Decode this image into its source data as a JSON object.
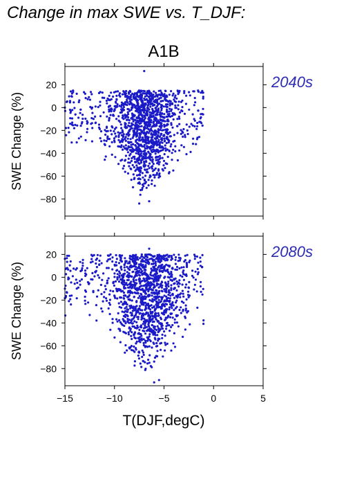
{
  "page_title": "Change in max SWE vs. T_DJF:",
  "scenario": "A1B",
  "colors": {
    "points": "#1a1ac8",
    "period_label": "#2b2bb5",
    "axes": "#000000"
  },
  "chart_data": [
    {
      "type": "scatter",
      "panel_label": "2040s",
      "title": "A1B",
      "xlabel": "",
      "ylabel": "SWE Change (%)",
      "xlim": [
        -15,
        5
      ],
      "ylim": [
        -95,
        36
      ],
      "xticks": [
        -15,
        -10,
        -5,
        0,
        5
      ],
      "yticks": [
        20,
        0,
        -20,
        -40,
        -60,
        -80
      ],
      "ytick_labels": [
        "20",
        "0",
        "−20",
        "−40",
        "−60",
        "−80"
      ],
      "point_count_approx": 1400,
      "cloud": {
        "x_range": [
          -15,
          -1
        ],
        "core_x": [
          -9.5,
          -4.5
        ],
        "y_top": 15,
        "y_bottom_core": -80,
        "outliers": [
          [
            -7,
            32
          ],
          [
            -7.5,
            -84
          ],
          [
            -6.5,
            -82
          ],
          [
            -15,
            0
          ]
        ]
      },
      "grid": false,
      "legend": "none"
    },
    {
      "type": "scatter",
      "panel_label": "2080s",
      "title": "",
      "xlabel": "T(DJF,degC)",
      "ylabel": "SWE Change (%)",
      "xlim": [
        -15,
        5
      ],
      "ylim": [
        -95,
        36
      ],
      "xticks": [
        -15,
        -10,
        -5,
        0,
        5
      ],
      "xtick_labels": [
        "−15",
        "−10",
        "−5",
        "0",
        "5"
      ],
      "yticks": [
        20,
        0,
        -20,
        -40,
        -60,
        -80
      ],
      "ytick_labels": [
        "20",
        "0",
        "−20",
        "−40",
        "−60",
        "−80"
      ],
      "point_count_approx": 1400,
      "cloud": {
        "x_range": [
          -15,
          -1
        ],
        "core_x": [
          -9.5,
          -4
        ],
        "y_top": 20,
        "y_bottom_core": -88,
        "outliers": [
          [
            -6.5,
            25
          ],
          [
            -6,
            -92
          ],
          [
            -5.5,
            -90
          ],
          [
            -15,
            -10
          ]
        ]
      },
      "grid": false,
      "legend": "none"
    }
  ]
}
